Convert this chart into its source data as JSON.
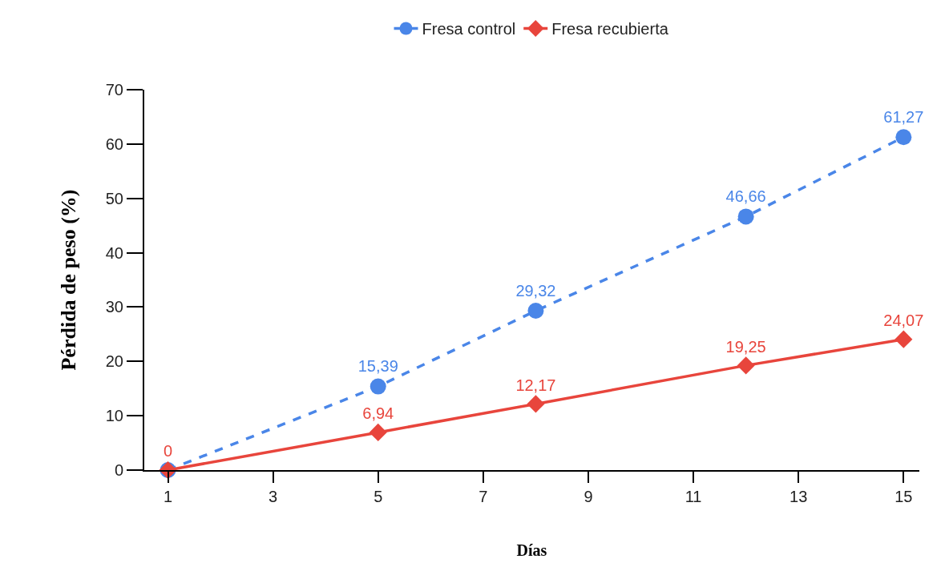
{
  "chart_data": {
    "type": "line",
    "xlabel": "Días",
    "ylabel": "Pérdida de peso (%)",
    "x": [
      1,
      5,
      8,
      12,
      15
    ],
    "series": [
      {
        "name": "Fresa control",
        "color": "#4a86e8",
        "marker": "circle",
        "line_style": "dashed",
        "values": [
          0,
          15.39,
          29.32,
          46.66,
          61.27
        ],
        "value_labels": [
          null,
          "15,39",
          "29,32",
          "46,66",
          "61,27"
        ]
      },
      {
        "name": "Fresa recubierta",
        "color": "#e8453c",
        "marker": "diamond",
        "line_style": "solid",
        "values": [
          0,
          6.94,
          12.17,
          19.25,
          24.07
        ],
        "value_labels": [
          "0",
          "6,94",
          "12,17",
          "19,25",
          "24,07"
        ]
      }
    ],
    "xlim": [
      0.55,
      15.3
    ],
    "xticks": [
      1,
      3,
      5,
      7,
      9,
      11,
      13,
      15
    ],
    "ylim": [
      0,
      70
    ],
    "yticks": [
      0,
      10,
      20,
      30,
      40,
      50,
      60,
      70
    ],
    "grid": false,
    "legend": "top"
  }
}
